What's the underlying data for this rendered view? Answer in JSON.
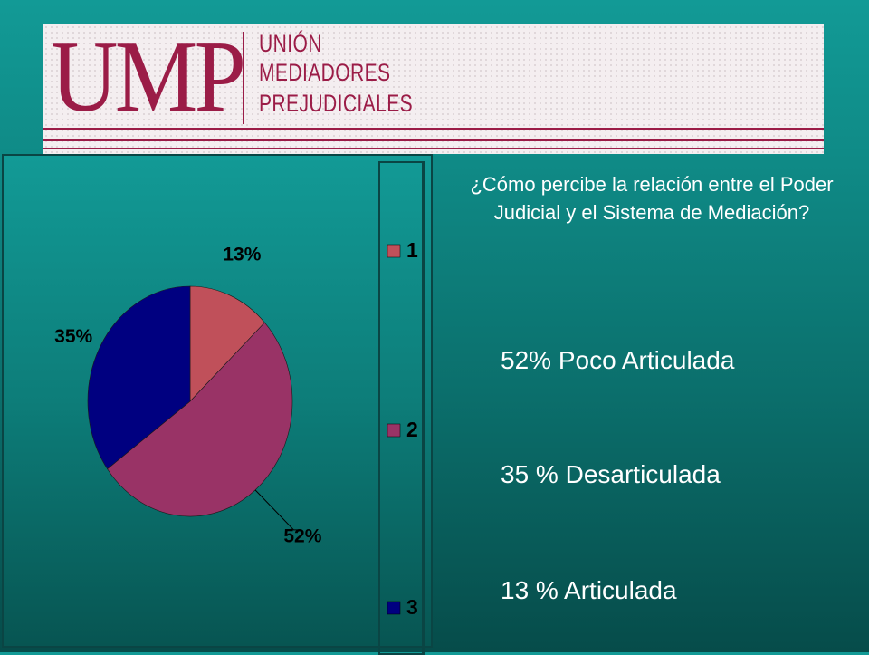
{
  "header": {
    "logo_text": "UMP",
    "org_lines": [
      "UNIÓN",
      "MEDIADORES",
      "PREJUDICIALES"
    ]
  },
  "question": "¿Cómo percibe la relación entre el Poder Judicial y el Sistema  de Mediación?",
  "summary": [
    "52% Poco Articulada",
    "35 % Desarticulada",
    "13 % Articulada"
  ],
  "chart_data": {
    "type": "pie",
    "categories": [
      "1",
      "2",
      "3"
    ],
    "values": [
      13,
      52,
      35
    ],
    "data_labels": [
      "13%",
      "52%",
      "35%"
    ],
    "colors": [
      "#c0505a",
      "#993366",
      "#000080"
    ],
    "legend": {
      "position": "right",
      "entries": [
        "1",
        "2",
        "3"
      ]
    }
  },
  "colors": {
    "brand": "#9b1c47",
    "background": "#0f8a86",
    "text": "#ffffff"
  }
}
